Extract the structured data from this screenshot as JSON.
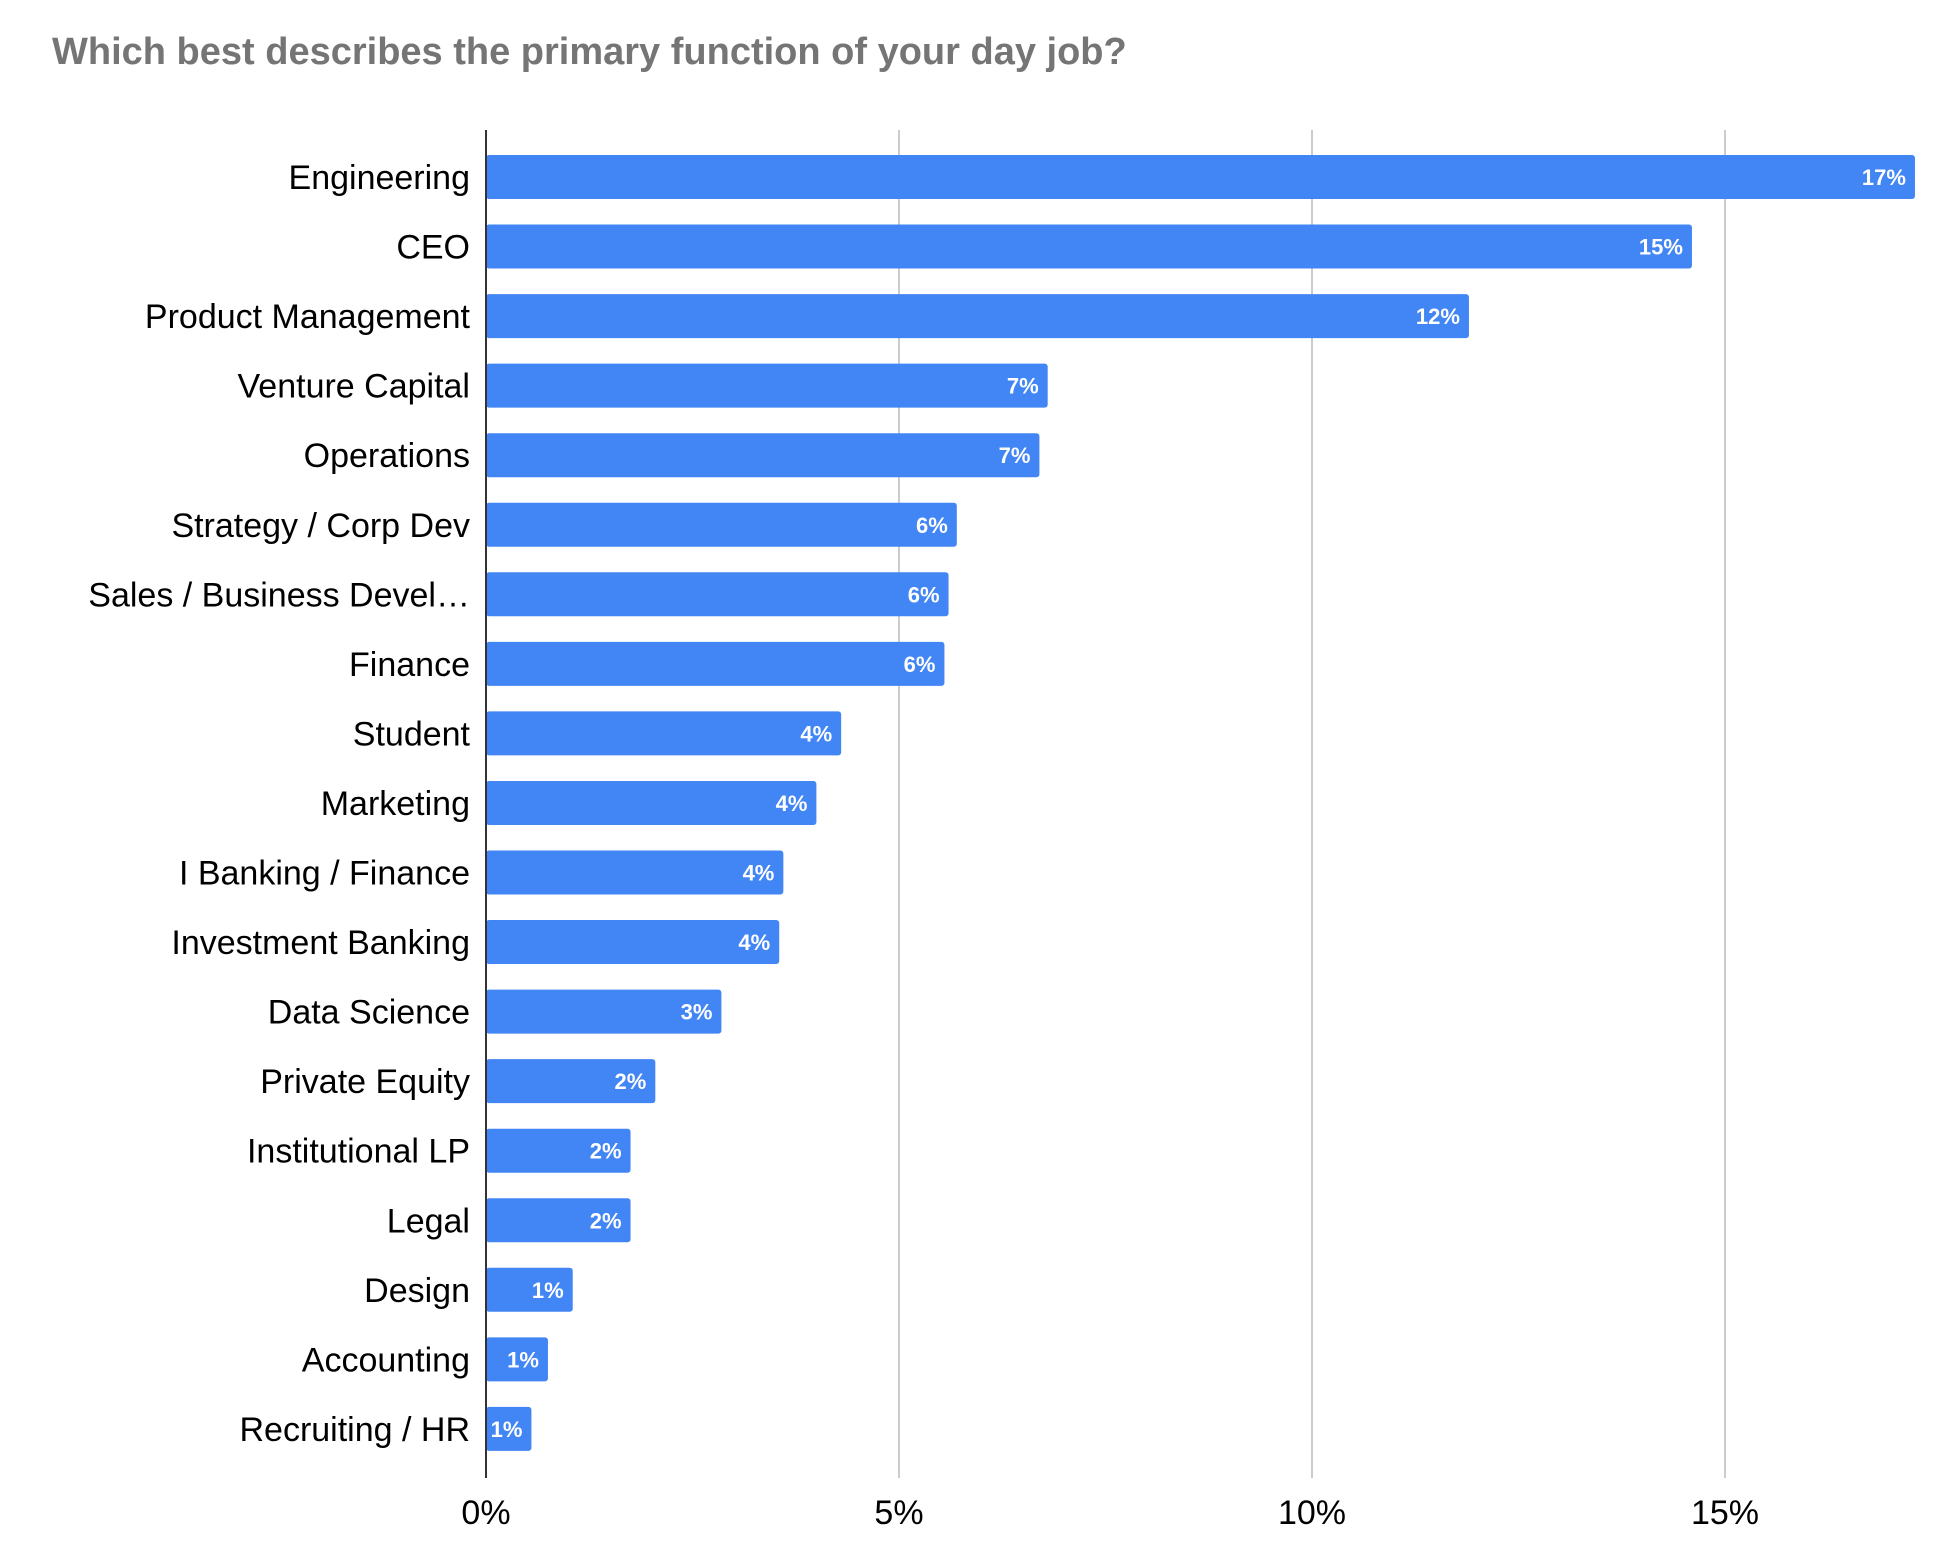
{
  "colors": {
    "bar": "#4285F4",
    "grid": "#cccccc",
    "axis": "#333333",
    "title": "#757575",
    "label": "#000000",
    "data_label": "#ffffff"
  },
  "chart_data": {
    "type": "bar",
    "orientation": "horizontal",
    "title": "Which best describes the primary function of your day job?",
    "xlabel": "",
    "ylabel": "",
    "xlim": [
      0,
      17.3
    ],
    "x_ticks": [
      {
        "value": 0,
        "label": "0%"
      },
      {
        "value": 5,
        "label": "5%"
      },
      {
        "value": 10,
        "label": "10%"
      },
      {
        "value": 15,
        "label": "15%"
      }
    ],
    "grid": true,
    "legend": "none",
    "categories": [
      "Engineering",
      "CEO",
      "Product Management",
      "Venture Capital",
      "Operations",
      "Strategy / Corp Dev",
      "Sales / Business Devel…",
      "Finance",
      "Student",
      "Marketing",
      "I Banking / Finance",
      "Investment Banking",
      "Data Science",
      "Private Equity",
      "Institutional LP",
      "Legal",
      "Design",
      "Accounting",
      "Recruiting / HR"
    ],
    "values": [
      17.3,
      14.6,
      11.9,
      6.8,
      6.7,
      5.7,
      5.6,
      5.55,
      4.3,
      4.0,
      3.6,
      3.55,
      2.85,
      2.05,
      1.75,
      1.75,
      1.05,
      0.75,
      0.55
    ],
    "data_labels": [
      "17%",
      "15%",
      "12%",
      "7%",
      "7%",
      "6%",
      "6%",
      "6%",
      "4%",
      "4%",
      "4%",
      "4%",
      "3%",
      "2%",
      "2%",
      "2%",
      "1%",
      "1%",
      "1%"
    ]
  }
}
